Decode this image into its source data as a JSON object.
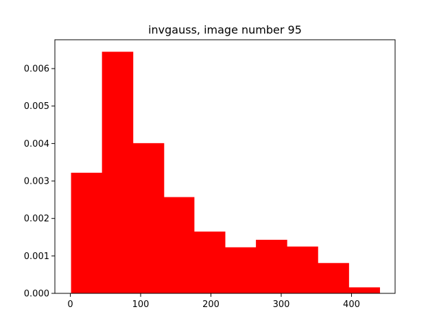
{
  "chart_data": {
    "type": "bar",
    "title": "invgauss, image number 95",
    "xlabel": "",
    "ylabel": "",
    "bar_color": "#ff0000",
    "bin_edges": [
      1,
      45,
      89,
      133,
      176,
      220,
      264,
      308,
      352,
      396,
      440
    ],
    "values": [
      0.00322,
      0.00645,
      0.00401,
      0.00257,
      0.00165,
      0.00123,
      0.00143,
      0.00125,
      0.00081,
      0.00016
    ],
    "xlim": [
      -22,
      462
    ],
    "ylim": [
      0,
      0.00677
    ],
    "x_ticks": [
      0,
      100,
      200,
      300,
      400
    ],
    "y_ticks": [
      0.0,
      0.001,
      0.002,
      0.003,
      0.004,
      0.005,
      0.006
    ],
    "y_tick_labels": [
      "0.000",
      "0.001",
      "0.002",
      "0.003",
      "0.004",
      "0.005",
      "0.006"
    ],
    "grid": false
  }
}
